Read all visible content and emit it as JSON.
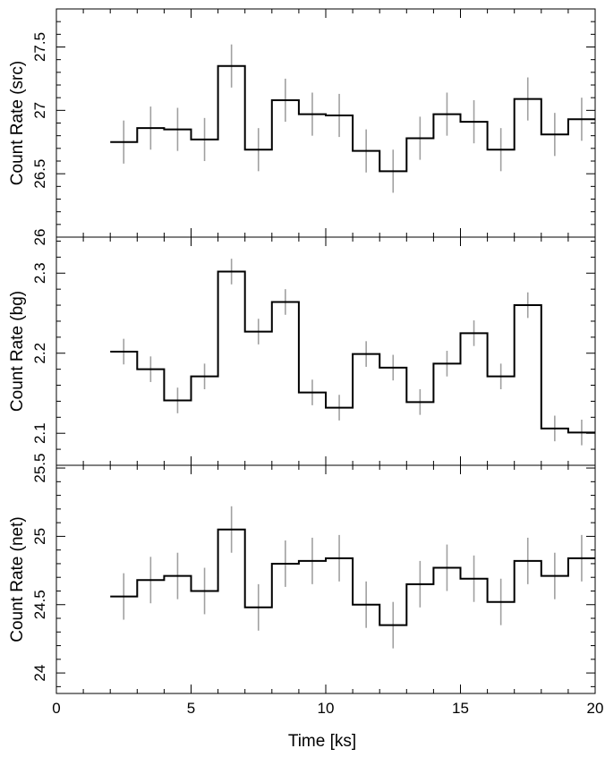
{
  "figure": {
    "xlabel": "Time [ks]"
  },
  "chart_data": [
    {
      "type": "line",
      "panel": "src",
      "ylabel": "Count Rate (src)",
      "xlim": [
        0,
        20
      ],
      "ylim": [
        26,
        27.8
      ],
      "xticks": [
        0,
        5,
        10,
        15,
        20
      ],
      "xtick_labels": [
        "0",
        "5",
        "10",
        "15",
        "20"
      ],
      "yticks": [
        26,
        26.5,
        27,
        27.5
      ],
      "ytick_labels": [
        "26",
        "26.5",
        "27",
        "27.5"
      ],
      "x": [
        2.5,
        3.5,
        4.5,
        5.5,
        6.5,
        7.5,
        8.5,
        9.5,
        10.5,
        11.5,
        12.5,
        13.5,
        14.5,
        15.5,
        16.5,
        17.5,
        18.5,
        19.5
      ],
      "values": [
        26.75,
        26.86,
        26.85,
        26.77,
        27.35,
        26.69,
        27.08,
        26.97,
        26.96,
        26.68,
        26.52,
        26.78,
        26.97,
        26.91,
        26.69,
        27.09,
        26.81,
        26.93
      ],
      "errors": [
        0.17,
        0.17,
        0.17,
        0.17,
        0.17,
        0.17,
        0.17,
        0.17,
        0.17,
        0.17,
        0.17,
        0.17,
        0.17,
        0.17,
        0.17,
        0.17,
        0.17,
        0.17
      ]
    },
    {
      "type": "line",
      "panel": "bg",
      "ylabel": "Count Rate (bg)",
      "xlim": [
        0,
        20
      ],
      "ylim": [
        2.06,
        2.345
      ],
      "xticks": [
        0,
        5,
        10,
        15,
        20
      ],
      "xtick_labels": [],
      "yticks": [
        2.1,
        2.2,
        2.3
      ],
      "ytick_labels": [
        "2.1",
        "2.2",
        "2.3"
      ],
      "x": [
        2.5,
        3.5,
        4.5,
        5.5,
        6.5,
        7.5,
        8.5,
        9.5,
        10.5,
        11.5,
        12.5,
        13.5,
        14.5,
        15.5,
        16.5,
        17.5,
        18.5,
        19.5
      ],
      "values": [
        2.202,
        2.18,
        2.141,
        2.171,
        2.302,
        2.227,
        2.264,
        2.151,
        2.132,
        2.199,
        2.182,
        2.139,
        2.187,
        2.225,
        2.171,
        2.26,
        2.106,
        2.101
      ],
      "errors": [
        0.016,
        0.016,
        0.016,
        0.016,
        0.016,
        0.016,
        0.016,
        0.016,
        0.016,
        0.016,
        0.016,
        0.016,
        0.016,
        0.016,
        0.016,
        0.016,
        0.016,
        0.016
      ]
    },
    {
      "type": "line",
      "panel": "net",
      "ylabel": "Count Rate (net)",
      "xlim": [
        0,
        20
      ],
      "ylim": [
        23.85,
        25.52
      ],
      "xticks": [
        0,
        5,
        10,
        15,
        20
      ],
      "xtick_labels": [
        "0",
        "5",
        "10",
        "15",
        "20"
      ],
      "yticks": [
        24,
        24.5,
        25,
        25.5
      ],
      "ytick_labels": [
        "24",
        "24.5",
        "25",
        "25.5"
      ],
      "x": [
        2.5,
        3.5,
        4.5,
        5.5,
        6.5,
        7.5,
        8.5,
        9.5,
        10.5,
        11.5,
        12.5,
        13.5,
        14.5,
        15.5,
        16.5,
        17.5,
        18.5,
        19.5
      ],
      "values": [
        24.56,
        24.68,
        24.71,
        24.6,
        25.05,
        24.48,
        24.8,
        24.82,
        24.84,
        24.5,
        24.35,
        24.65,
        24.77,
        24.69,
        24.52,
        24.82,
        24.71,
        24.84
      ],
      "errors": [
        0.17,
        0.17,
        0.17,
        0.17,
        0.17,
        0.17,
        0.17,
        0.17,
        0.17,
        0.17,
        0.17,
        0.17,
        0.17,
        0.17,
        0.17,
        0.17,
        0.17,
        0.17
      ]
    }
  ]
}
